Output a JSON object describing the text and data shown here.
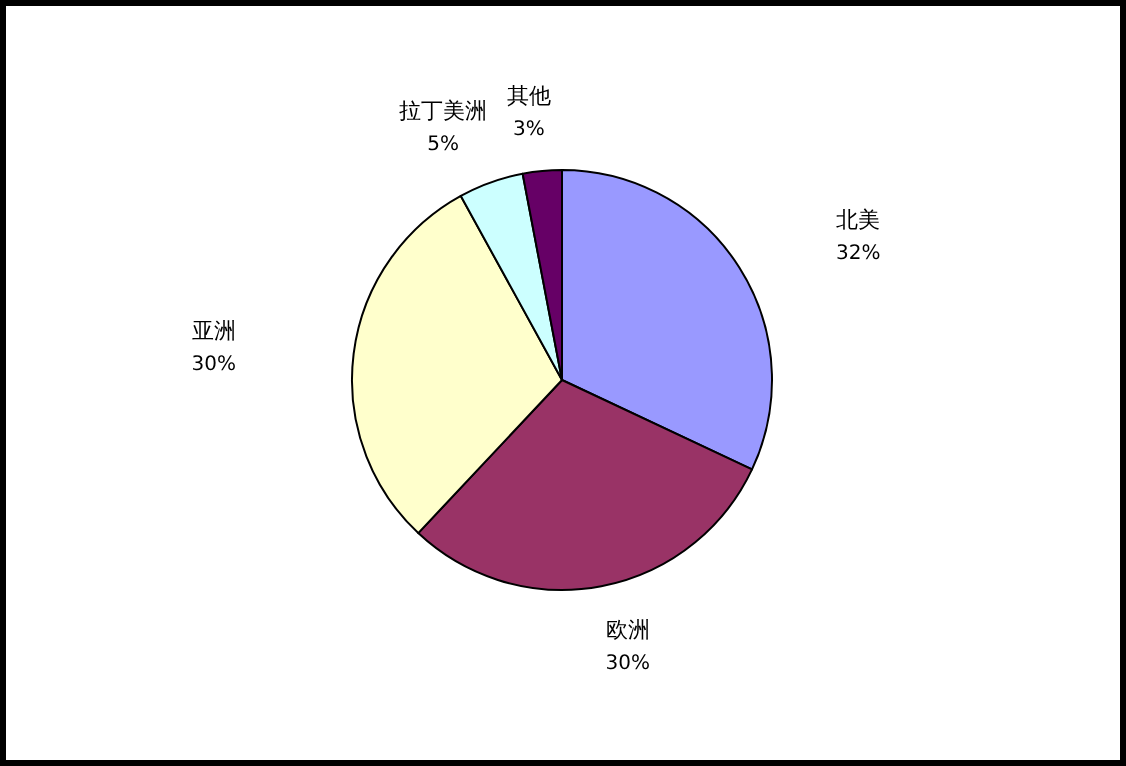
{
  "chart_data": {
    "type": "pie",
    "categories": [
      "北美",
      "欧洲",
      "亚洲",
      "拉丁美洲",
      "其他"
    ],
    "values": [
      32,
      30,
      30,
      5,
      3
    ],
    "value_labels": [
      "32%",
      "30%",
      "30%",
      "5%",
      "3%"
    ],
    "colors": [
      "#9999ff",
      "#993366",
      "#ffffcc",
      "#ccffff",
      "#660066"
    ]
  }
}
